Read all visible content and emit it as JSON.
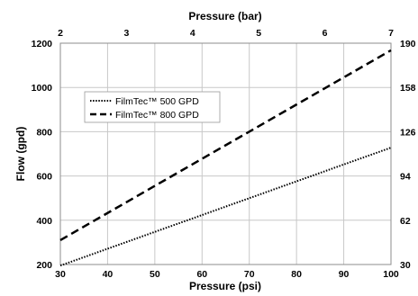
{
  "chart_data": {
    "type": "line",
    "xlabel": "Pressure (psi)",
    "ylabel": "Flow (gpd)",
    "x2label": "Pressure (bar)",
    "xlim": [
      30,
      100
    ],
    "ylim": [
      200,
      1200
    ],
    "x_ticks": [
      30,
      40,
      50,
      60,
      70,
      80,
      90,
      100
    ],
    "y_ticks": [
      200,
      400,
      600,
      800,
      1000,
      1200
    ],
    "x2_ticks": [
      2,
      3,
      4,
      5,
      6,
      7
    ],
    "y2_ticks": [
      30,
      62,
      94,
      126,
      158,
      190
    ],
    "grid": true,
    "legend_position": "upper-left",
    "series": [
      {
        "name": "FilmTec™ 500 GPD",
        "style": "dotted",
        "color": "#000000",
        "x": [
          30,
          100
        ],
        "y": [
          195,
          728
        ]
      },
      {
        "name": "FilmTec™ 800 GPD",
        "style": "dashed",
        "color": "#000000",
        "x": [
          30,
          100
        ],
        "y": [
          310,
          1168
        ]
      }
    ]
  }
}
